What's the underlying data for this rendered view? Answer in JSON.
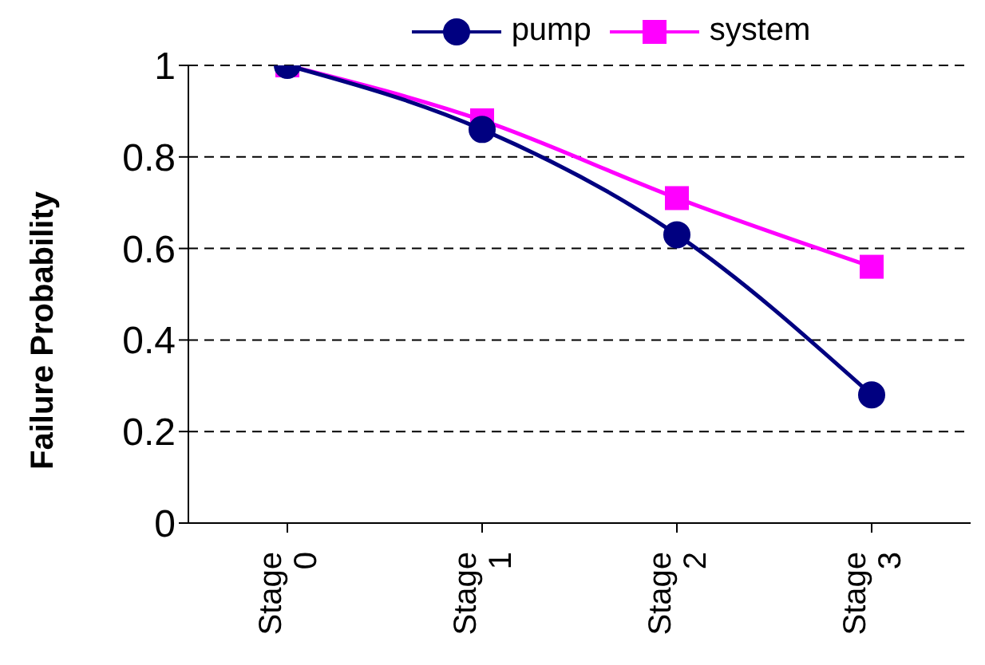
{
  "chart_data": {
    "type": "line",
    "ylabel": "Failure Probability",
    "categories": [
      "Stage 0",
      "Stage 1",
      "Stage 2",
      "Stage 3"
    ],
    "series": [
      {
        "name": "pump",
        "color": "#000080",
        "values": [
          1,
          0.86,
          0.63,
          0.28
        ],
        "marker": "circle"
      },
      {
        "name": "system",
        "color": "#ff00ff",
        "values": [
          1,
          0.88,
          0.71,
          0.56
        ],
        "marker": "square"
      }
    ],
    "ylim": [
      0,
      1
    ],
    "yticks": [
      0,
      0.2,
      0.4,
      0.6,
      0.8,
      1
    ],
    "grid": "y",
    "legend": "top",
    "line_style": "solid"
  }
}
